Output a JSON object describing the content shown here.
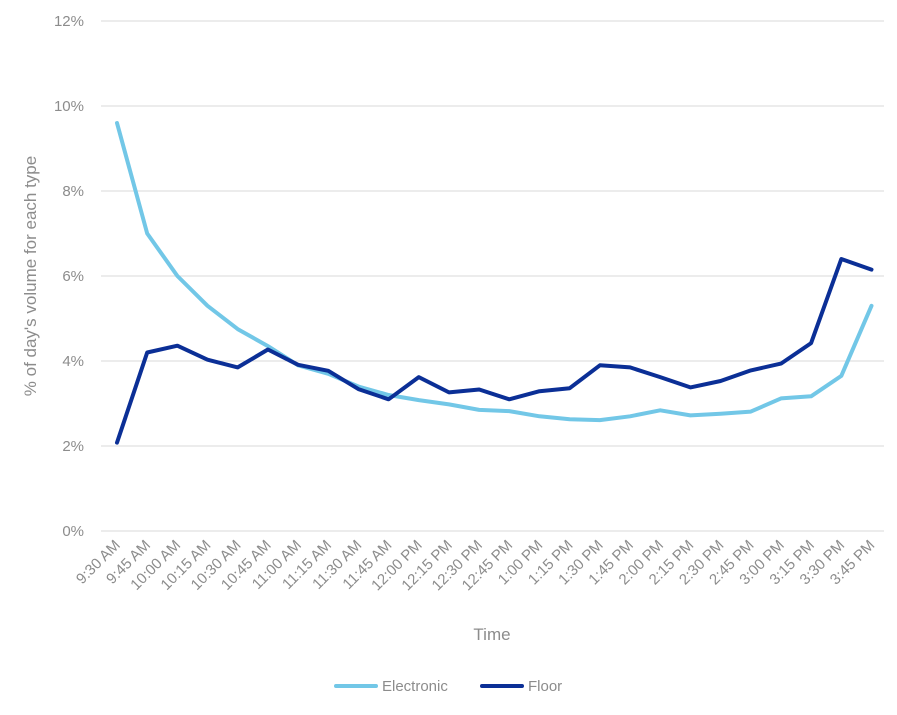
{
  "chart_data": {
    "type": "line",
    "title": "",
    "xlabel": "Time",
    "ylabel": "% of day's volume for each type",
    "ylim": [
      0,
      12
    ],
    "y_ticks": [
      "0%",
      "2%",
      "4%",
      "6%",
      "8%",
      "10%",
      "12%"
    ],
    "y_tick_values": [
      0,
      2,
      4,
      6,
      8,
      10,
      12
    ],
    "grid": true,
    "legend_position": "bottom",
    "categories": [
      "9:30 AM",
      "9:45 AM",
      "10:00 AM",
      "10:15 AM",
      "10:30 AM",
      "10:45 AM",
      "11:00 AM",
      "11:15 AM",
      "11:30 AM",
      "11:45 AM",
      "12:00 PM",
      "12:15 PM",
      "12:30 PM",
      "12:45 PM",
      "1:00 PM",
      "1:15 PM",
      "1:30 PM",
      "1:45 PM",
      "2:00 PM",
      "2:15 PM",
      "2:30 PM",
      "2:45 PM",
      "3:00 PM",
      "3:15 PM",
      "3:30 PM",
      "3:45 PM"
    ],
    "series": [
      {
        "name": "Electronic",
        "color": "#72c7e7",
        "values": [
          9.6,
          7.0,
          6.0,
          5.3,
          4.75,
          4.35,
          3.9,
          3.7,
          3.4,
          3.2,
          3.08,
          2.98,
          2.85,
          2.82,
          2.7,
          2.63,
          2.61,
          2.7,
          2.84,
          2.72,
          2.76,
          2.81,
          3.12,
          3.17,
          3.65,
          5.3
        ]
      },
      {
        "name": "Floor",
        "color": "#0b2f96",
        "values": [
          2.08,
          4.2,
          4.36,
          4.03,
          3.85,
          4.27,
          3.91,
          3.77,
          3.34,
          3.1,
          3.62,
          3.26,
          3.33,
          3.1,
          3.29,
          3.36,
          3.9,
          3.85,
          3.62,
          3.38,
          3.53,
          3.78,
          3.94,
          4.42,
          6.4,
          6.15
        ]
      }
    ]
  }
}
